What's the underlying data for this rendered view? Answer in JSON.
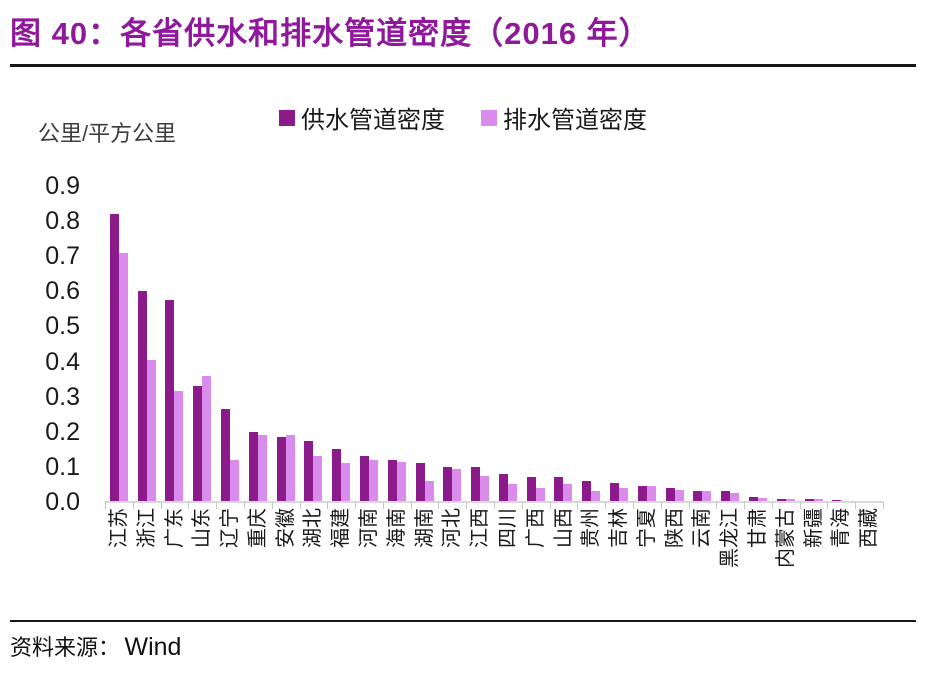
{
  "header": {
    "title": "图 40：各省供水和排水管道密度（2016 年）"
  },
  "chart_data": {
    "type": "bar",
    "title": "各省供水和排水管道密度（2016 年）",
    "unit_label": "公里/平方公里",
    "xlabel": "",
    "ylabel": "公里/平方公里",
    "ylim": [
      0,
      0.9
    ],
    "ytick_labels": [
      "0.9",
      "0.8",
      "0.7",
      "0.6",
      "0.5",
      "0.4",
      "0.3",
      "0.2",
      "0.1",
      "0.0"
    ],
    "grid": false,
    "legend_position": "top-center",
    "categories": [
      "江苏",
      "浙江",
      "广东",
      "山东",
      "辽宁",
      "重庆",
      "安徽",
      "湖北",
      "福建",
      "河南",
      "海南",
      "湖南",
      "河北",
      "江西",
      "四川",
      "广西",
      "山西",
      "贵州",
      "吉林",
      "宁夏",
      "陕西",
      "云南",
      "黑龙江",
      "甘肃",
      "内蒙古",
      "新疆",
      "青海",
      "西藏"
    ],
    "series": [
      {
        "name": "供水管道密度",
        "color": "#8B1A8B",
        "values": [
          0.82,
          0.6,
          0.575,
          0.33,
          0.265,
          0.2,
          0.185,
          0.175,
          0.15,
          0.13,
          0.12,
          0.11,
          0.1,
          0.1,
          0.08,
          0.07,
          0.07,
          0.06,
          0.055,
          0.045,
          0.04,
          0.03,
          0.03,
          0.015,
          0.01,
          0.01,
          0.005,
          0.003
        ]
      },
      {
        "name": "排水管道密度",
        "color": "#D98CEC",
        "values": [
          0.71,
          0.405,
          0.315,
          0.36,
          0.12,
          0.19,
          0.19,
          0.13,
          0.11,
          0.12,
          0.115,
          0.06,
          0.095,
          0.075,
          0.05,
          0.04,
          0.05,
          0.03,
          0.04,
          0.045,
          0.035,
          0.03,
          0.025,
          0.012,
          0.01,
          0.008,
          0.004,
          0.002
        ]
      }
    ]
  },
  "footer": {
    "source_label": "资料来源：",
    "source_value": "Wind"
  }
}
